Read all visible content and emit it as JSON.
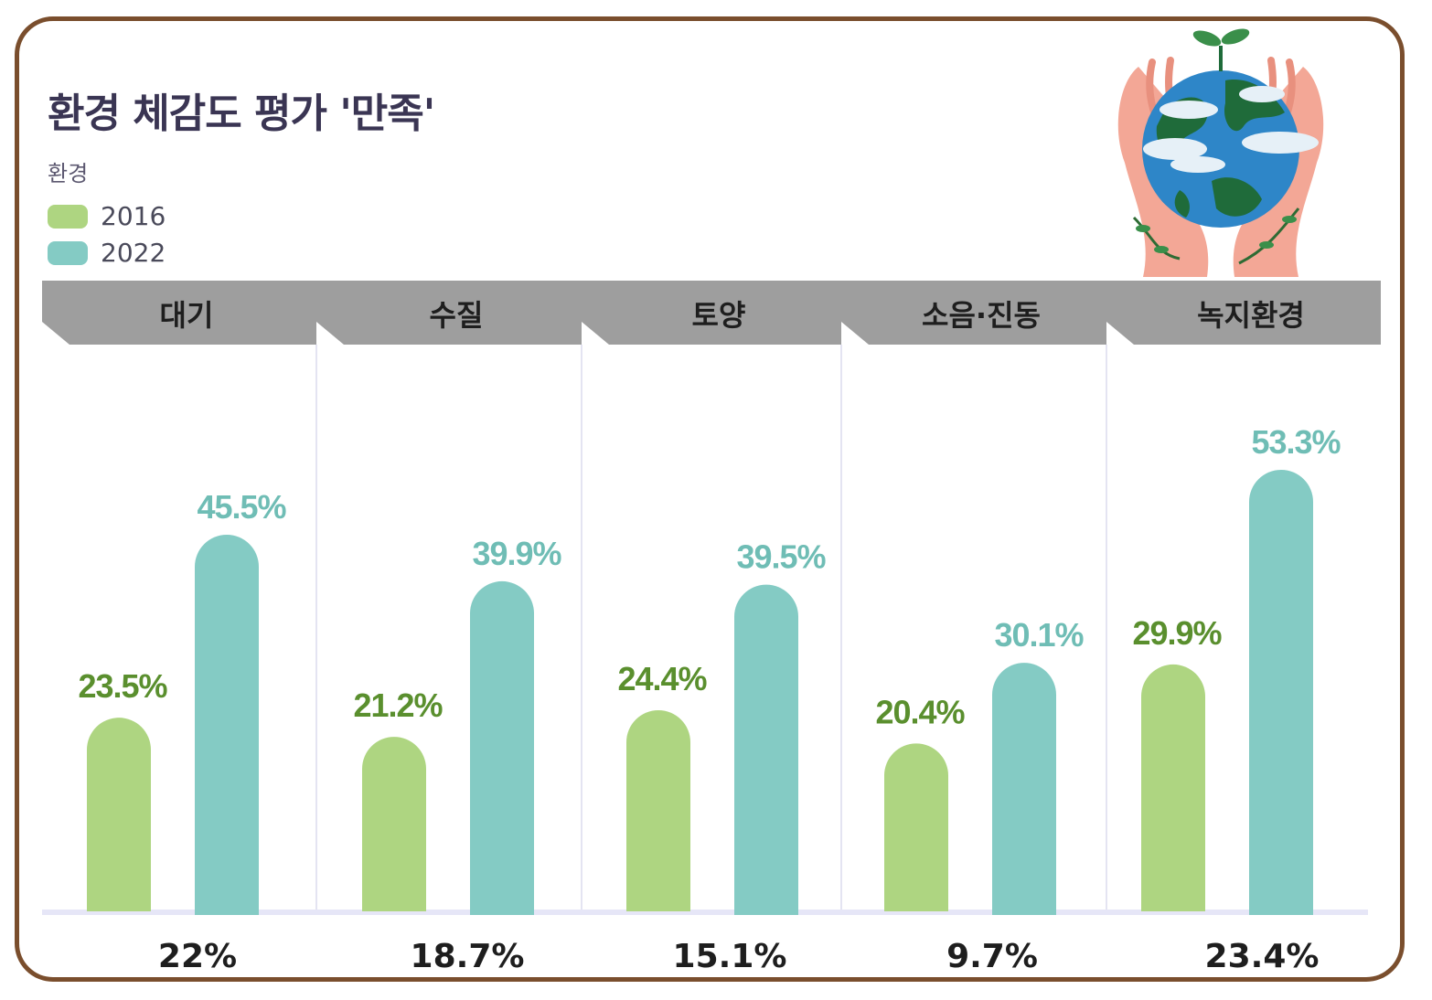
{
  "header": {
    "title": "환경 체감도 평가 '만족'",
    "subtitle": "환경"
  },
  "colors": {
    "frame": "#7a4e2d",
    "series_2016": "#aed581",
    "series_2022": "#84cbc4",
    "label_2016": "#5a8f2e",
    "label_2022": "#6fbdb5",
    "header_band": "#9e9e9e",
    "baseline": "#e6e6f7"
  },
  "illustration": {
    "icon": "earth-in-hands-icon"
  },
  "chart_data": {
    "type": "bar",
    "title": "환경 체감도 평가 '만족'",
    "subtitle": "환경",
    "categories": [
      "대기",
      "수질",
      "토양",
      "소음·진동",
      "녹지환경"
    ],
    "series": [
      {
        "name": "2016",
        "values": [
          23.5,
          21.2,
          24.4,
          20.4,
          29.9
        ],
        "labels": [
          "23.5%",
          "21.2%",
          "24.4%",
          "20.4%",
          "29.9%"
        ]
      },
      {
        "name": "2022",
        "values": [
          45.5,
          39.9,
          39.5,
          30.1,
          53.3
        ],
        "labels": [
          "45.5%",
          "39.9%",
          "39.5%",
          "30.1%",
          "53.3%"
        ]
      }
    ],
    "differences": [
      "22%",
      "18.7%",
      "15.1%",
      "9.7%",
      "23.4%"
    ],
    "ylim": [
      0,
      60
    ],
    "legend_position": "top-left",
    "grid": false
  }
}
